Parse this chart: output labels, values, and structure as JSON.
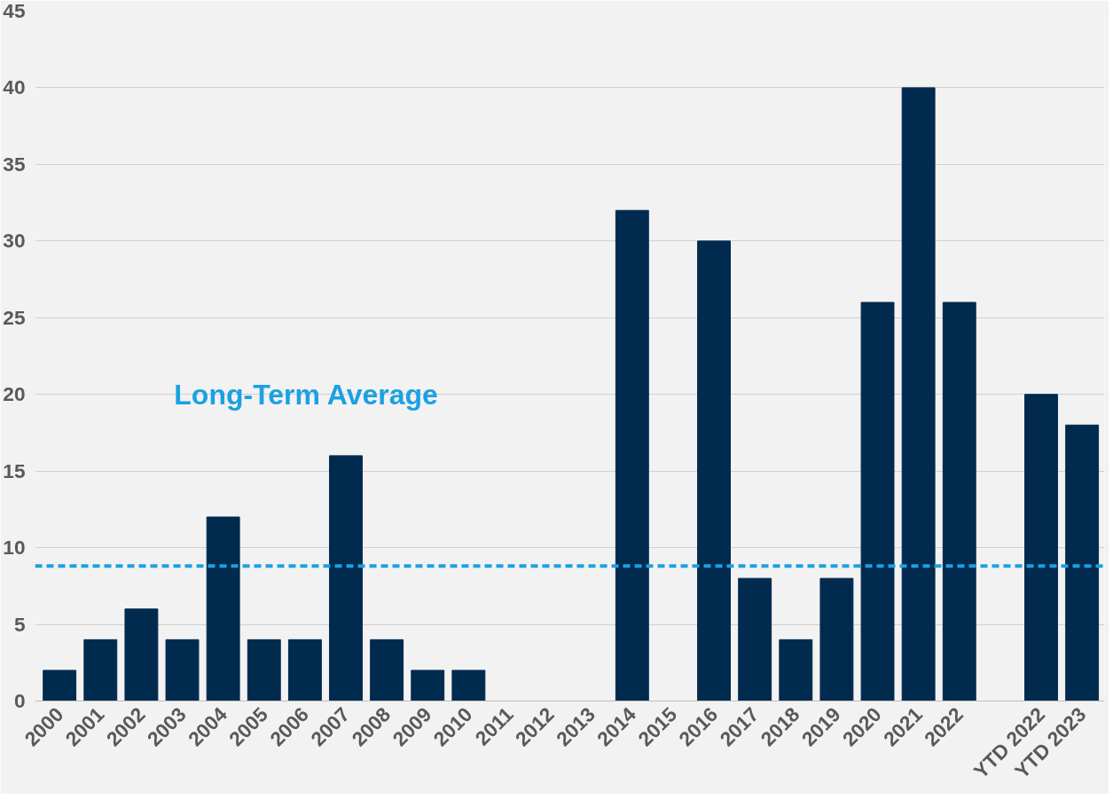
{
  "chart_data": {
    "type": "bar",
    "categories": [
      "2000",
      "2001",
      "2002",
      "2003",
      "2004",
      "2005",
      "2006",
      "2007",
      "2008",
      "2009",
      "2010",
      "2011",
      "2012",
      "2013",
      "2014",
      "2015",
      "2016",
      "2017",
      "2018",
      "2019",
      "2020",
      "2021",
      "2022",
      null,
      "YTD 2022",
      "YTD 2023"
    ],
    "values": [
      2,
      4,
      6,
      4,
      12,
      4,
      4,
      16,
      4,
      2,
      2,
      0,
      0,
      0,
      32,
      0,
      30,
      8,
      4,
      8,
      26,
      40,
      26,
      null,
      20,
      18
    ],
    "color": "#002a4e",
    "ylim": [
      0,
      45
    ],
    "yticks": [
      0,
      5,
      10,
      15,
      20,
      25,
      30,
      35,
      40,
      45
    ],
    "grid": "y",
    "ref_lines": [
      {
        "axis": "y",
        "value": 8.8,
        "label": "Long-Term Average",
        "color": "#1ba1e2",
        "line_style": "dashed"
      }
    ]
  }
}
